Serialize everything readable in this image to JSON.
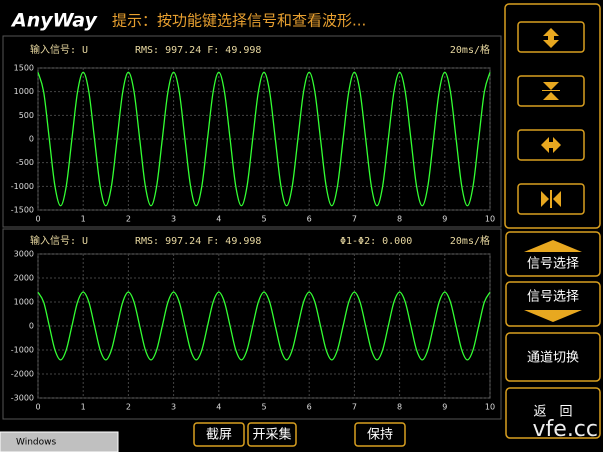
{
  "header": {
    "logo": "AnyWay",
    "hint": "提示：按功能键选择信号和查看波形..."
  },
  "side_buttons": [
    "信号选择",
    "信号选择",
    "通道切换",
    "返　回"
  ],
  "bottom_buttons": [
    "截屏",
    "开采集",
    "保持"
  ],
  "taskbar": "Windows",
  "watermark": "vfe.cc",
  "chart_data": [
    {
      "type": "line",
      "signal": "输入信号: U",
      "measure": "RMS: 997.24  F: 49.998",
      "scale": "20ms/格",
      "x": [
        0,
        0.125,
        0.25,
        0.375,
        0.5,
        0.625,
        0.75,
        0.875,
        1,
        1.125,
        1.25,
        1.375,
        1.5,
        1.625,
        1.75,
        1.875,
        2,
        2.125,
        2.25,
        2.375,
        2.5,
        2.625,
        2.75,
        2.875,
        3,
        3.125,
        3.25,
        3.375,
        3.5,
        3.625,
        3.75,
        3.875,
        4,
        4.125,
        4.25,
        4.375,
        4.5,
        4.625,
        4.75,
        4.875,
        5,
        5.125,
        5.25,
        5.375,
        5.5,
        5.625,
        5.75,
        5.875,
        6,
        6.125,
        6.25,
        6.375,
        6.5,
        6.625,
        6.75,
        6.875,
        7,
        7.125,
        7.25,
        7.375,
        7.5,
        7.625,
        7.75,
        7.875,
        8,
        8.125,
        8.25,
        8.375,
        8.5,
        8.625,
        8.75,
        8.875,
        9,
        9.125,
        9.25,
        9.375,
        9.5,
        9.625,
        9.75,
        9.875,
        10
      ],
      "series": [
        {
          "color": "#33ff33",
          "values": [
            1410,
            997,
            0,
            -997,
            -1410,
            -997,
            0,
            997,
            1410,
            997,
            0,
            -997,
            -1410,
            -997,
            0,
            997,
            1410,
            997,
            0,
            -997,
            -1410,
            -997,
            0,
            997,
            1410,
            997,
            0,
            -997,
            -1410,
            -997,
            0,
            997,
            1410,
            997,
            0,
            -997,
            -1410,
            -997,
            0,
            997,
            1410,
            997,
            0,
            -997,
            -1410,
            -997,
            0,
            997,
            1410,
            997,
            0,
            -997,
            -1410,
            -997,
            0,
            997,
            1410,
            997,
            0,
            -997,
            -1410,
            -997,
            0,
            997,
            1410,
            997,
            0,
            -997,
            -1410,
            -997,
            0,
            997,
            1410,
            997,
            0,
            -997,
            -1410,
            -997,
            0,
            997,
            1410
          ]
        }
      ],
      "xlim": [
        0,
        10
      ],
      "xticks": [
        0,
        1,
        2,
        3,
        4,
        5,
        6,
        7,
        8,
        9,
        10
      ],
      "ylim": [
        -1500,
        1500
      ],
      "yticks": [
        -1500,
        -1000,
        -500,
        0,
        500,
        1000,
        1500
      ],
      "grid": true
    },
    {
      "type": "line",
      "signal": "输入信号: U",
      "measure": "RMS: 997.24  F: 49.998",
      "phase": "Φ1-Φ2: 0.000",
      "scale": "20ms/格",
      "x": [
        0,
        0.125,
        0.25,
        0.375,
        0.5,
        0.625,
        0.75,
        0.875,
        1,
        1.125,
        1.25,
        1.375,
        1.5,
        1.625,
        1.75,
        1.875,
        2,
        2.125,
        2.25,
        2.375,
        2.5,
        2.625,
        2.75,
        2.875,
        3,
        3.125,
        3.25,
        3.375,
        3.5,
        3.625,
        3.75,
        3.875,
        4,
        4.125,
        4.25,
        4.375,
        4.5,
        4.625,
        4.75,
        4.875,
        5,
        5.125,
        5.25,
        5.375,
        5.5,
        5.625,
        5.75,
        5.875,
        6,
        6.125,
        6.25,
        6.375,
        6.5,
        6.625,
        6.75,
        6.875,
        7,
        7.125,
        7.25,
        7.375,
        7.5,
        7.625,
        7.75,
        7.875,
        8,
        8.125,
        8.25,
        8.375,
        8.5,
        8.625,
        8.75,
        8.875,
        9,
        9.125,
        9.25,
        9.375,
        9.5,
        9.625,
        9.75,
        9.875,
        10
      ],
      "series": [
        {
          "color": "#33ff33",
          "values": [
            1410,
            997,
            0,
            -997,
            -1410,
            -997,
            0,
            997,
            1410,
            997,
            0,
            -997,
            -1410,
            -997,
            0,
            997,
            1410,
            997,
            0,
            -997,
            -1410,
            -997,
            0,
            997,
            1410,
            997,
            0,
            -997,
            -1410,
            -997,
            0,
            997,
            1410,
            997,
            0,
            -997,
            -1410,
            -997,
            0,
            997,
            1410,
            997,
            0,
            -997,
            -1410,
            -997,
            0,
            997,
            1410,
            997,
            0,
            -997,
            -1410,
            -997,
            0,
            997,
            1410,
            997,
            0,
            -997,
            -1410,
            -997,
            0,
            997,
            1410,
            997,
            0,
            -997,
            -1410,
            -997,
            0,
            997,
            1410,
            997,
            0,
            -997,
            -1410,
            -997,
            0,
            997,
            1410
          ]
        }
      ],
      "xlim": [
        0,
        10
      ],
      "xticks": [
        0,
        1,
        2,
        3,
        4,
        5,
        6,
        7,
        8,
        9,
        10
      ],
      "ylim": [
        -3000,
        3000
      ],
      "yticks": [
        -3000,
        -2000,
        -1000,
        0,
        1000,
        2000,
        3000
      ],
      "grid": true
    }
  ]
}
